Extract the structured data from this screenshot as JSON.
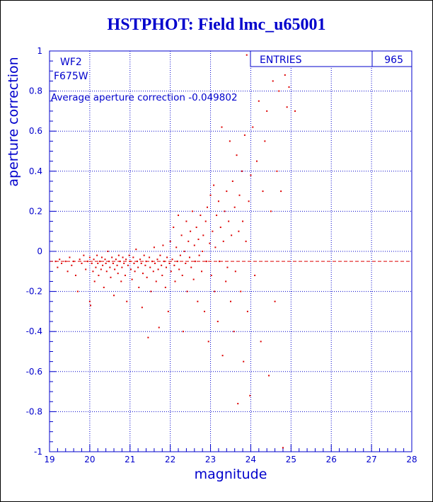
{
  "title": "HSTPHOT: Field lmc_u65001",
  "colors": {
    "axis": "#0000cc",
    "data": "#dd0000",
    "text": "#0000cc"
  },
  "stats_box": {
    "label": "ENTRIES",
    "value": "965"
  },
  "annotations": {
    "chip": "WF2",
    "filter": "F675W",
    "average": "Average aperture correction -0.049802"
  },
  "chart_data": {
    "type": "scatter",
    "title": "HSTPHOT: Field lmc_u65001",
    "xlabel": "magnitude",
    "ylabel": "aperture correction",
    "xlim": [
      19,
      28
    ],
    "ylim": [
      -1,
      1
    ],
    "x_ticks": [
      19,
      20,
      21,
      22,
      23,
      24,
      25,
      26,
      27,
      28
    ],
    "y_ticks": [
      -1,
      -0.8,
      -0.6,
      -0.4,
      -0.2,
      0,
      0.2,
      0.4,
      0.6,
      0.8,
      1
    ],
    "x_tick_labels": [
      "19",
      "20",
      "21",
      "22",
      "23",
      "24",
      "25",
      "26",
      "27",
      "28"
    ],
    "y_tick_labels": [
      "-1",
      "-0.8",
      "-0.6",
      "-0.4",
      "-0.2",
      "0",
      "0.2",
      "0.4",
      "0.6",
      "0.8",
      "1"
    ],
    "grid": true,
    "reference_line": {
      "y": -0.049802,
      "style": "dashed"
    },
    "entries": 965,
    "points": [
      [
        19.15,
        -0.05
      ],
      [
        19.2,
        -0.08
      ],
      [
        19.25,
        -0.04
      ],
      [
        19.3,
        -0.06
      ],
      [
        19.4,
        -0.05
      ],
      [
        19.45,
        -0.1
      ],
      [
        19.5,
        -0.03
      ],
      [
        19.55,
        -0.07
      ],
      [
        19.6,
        -0.05
      ],
      [
        19.65,
        -0.12
      ],
      [
        19.7,
        -0.2
      ],
      [
        19.75,
        -0.04
      ],
      [
        19.8,
        -0.06
      ],
      [
        19.85,
        -0.02
      ],
      [
        19.9,
        -0.09
      ],
      [
        19.95,
        -0.05
      ],
      [
        20.0,
        -0.03
      ],
      [
        20.0,
        -0.25
      ],
      [
        20.02,
        -0.27
      ],
      [
        20.05,
        -0.06
      ],
      [
        20.08,
        -0.1
      ],
      [
        20.1,
        -0.04
      ],
      [
        20.12,
        -0.15
      ],
      [
        20.15,
        -0.08
      ],
      [
        20.18,
        -0.02
      ],
      [
        20.2,
        -0.06
      ],
      [
        20.22,
        -0.12
      ],
      [
        20.25,
        -0.05
      ],
      [
        20.28,
        -0.09
      ],
      [
        20.3,
        -0.03
      ],
      [
        20.32,
        -0.07
      ],
      [
        20.35,
        -0.18
      ],
      [
        20.38,
        -0.04
      ],
      [
        20.4,
        -0.06
      ],
      [
        20.42,
        -0.1
      ],
      [
        20.45,
        0.0
      ],
      [
        20.48,
        -0.05
      ],
      [
        20.5,
        -0.08
      ],
      [
        20.52,
        -0.13
      ],
      [
        20.55,
        -0.03
      ],
      [
        20.58,
        -0.06
      ],
      [
        20.6,
        -0.22
      ],
      [
        20.62,
        -0.09
      ],
      [
        20.65,
        -0.04
      ],
      [
        20.68,
        -0.07
      ],
      [
        20.7,
        -0.11
      ],
      [
        20.72,
        -0.02
      ],
      [
        20.75,
        -0.05
      ],
      [
        20.78,
        -0.15
      ],
      [
        20.8,
        -0.08
      ],
      [
        20.82,
        -0.03
      ],
      [
        20.85,
        -0.06
      ],
      [
        20.88,
        -0.12
      ],
      [
        20.9,
        -0.04
      ],
      [
        20.92,
        -0.25
      ],
      [
        20.95,
        -0.07
      ],
      [
        20.98,
        -0.02
      ],
      [
        21.0,
        -0.05
      ],
      [
        21.02,
        -0.09
      ],
      [
        21.05,
        -0.14
      ],
      [
        21.08,
        -0.03
      ],
      [
        21.1,
        -0.06
      ],
      [
        21.12,
        -0.1
      ],
      [
        21.15,
        0.01
      ],
      [
        21.18,
        -0.05
      ],
      [
        21.2,
        -0.08
      ],
      [
        21.22,
        -0.18
      ],
      [
        21.25,
        -0.04
      ],
      [
        21.28,
        -0.06
      ],
      [
        21.3,
        -0.28
      ],
      [
        21.32,
        -0.11
      ],
      [
        21.35,
        -0.02
      ],
      [
        21.38,
        -0.07
      ],
      [
        21.4,
        -0.05
      ],
      [
        21.42,
        -0.13
      ],
      [
        21.45,
        -0.43
      ],
      [
        21.48,
        -0.03
      ],
      [
        21.5,
        -0.08
      ],
      [
        21.52,
        -0.2
      ],
      [
        21.55,
        -0.05
      ],
      [
        21.58,
        -0.1
      ],
      [
        21.6,
        0.02
      ],
      [
        21.62,
        -0.06
      ],
      [
        21.65,
        -0.15
      ],
      [
        21.68,
        -0.04
      ],
      [
        21.7,
        -0.09
      ],
      [
        21.72,
        -0.38
      ],
      [
        21.75,
        -0.02
      ],
      [
        21.78,
        -0.07
      ],
      [
        21.8,
        -0.12
      ],
      [
        21.82,
        0.03
      ],
      [
        21.85,
        -0.05
      ],
      [
        21.88,
        -0.18
      ],
      [
        21.9,
        -0.08
      ],
      [
        21.92,
        -0.03
      ],
      [
        21.95,
        -0.3
      ],
      [
        21.98,
        -0.06
      ],
      [
        22.0,
        0.05
      ],
      [
        22.02,
        -0.1
      ],
      [
        22.05,
        -0.04
      ],
      [
        22.08,
        0.12
      ],
      [
        22.1,
        -0.07
      ],
      [
        22.12,
        -0.15
      ],
      [
        22.15,
        0.02
      ],
      [
        22.18,
        -0.05
      ],
      [
        22.2,
        0.18
      ],
      [
        22.22,
        -0.09
      ],
      [
        22.25,
        -0.02
      ],
      [
        22.28,
        0.08
      ],
      [
        22.3,
        -0.12
      ],
      [
        22.32,
        -0.4
      ],
      [
        22.35,
        0.0
      ],
      [
        22.38,
        -0.06
      ],
      [
        22.4,
        0.15
      ],
      [
        22.42,
        -0.2
      ],
      [
        22.45,
        0.05
      ],
      [
        22.48,
        -0.03
      ],
      [
        22.5,
        0.1
      ],
      [
        22.52,
        -0.08
      ],
      [
        22.55,
        0.2
      ],
      [
        22.58,
        -0.14
      ],
      [
        22.6,
        0.03
      ],
      [
        22.62,
        -0.05
      ],
      [
        22.65,
        0.12
      ],
      [
        22.68,
        -0.25
      ],
      [
        22.7,
        0.06
      ],
      [
        22.72,
        -0.02
      ],
      [
        22.75,
        0.18
      ],
      [
        22.78,
        -0.1
      ],
      [
        22.8,
        0.0
      ],
      [
        22.82,
        0.08
      ],
      [
        22.85,
        -0.3
      ],
      [
        22.88,
        0.15
      ],
      [
        22.9,
        -0.05
      ],
      [
        22.92,
        0.22
      ],
      [
        22.95,
        -0.45
      ],
      [
        22.98,
        0.04
      ],
      [
        23.0,
        0.28
      ],
      [
        23.02,
        -0.12
      ],
      [
        23.05,
        0.1
      ],
      [
        23.08,
        0.33
      ],
      [
        23.1,
        -0.2
      ],
      [
        23.12,
        0.02
      ],
      [
        23.15,
        0.18
      ],
      [
        23.18,
        -0.35
      ],
      [
        23.2,
        0.25
      ],
      [
        23.22,
        -0.05
      ],
      [
        23.25,
        0.12
      ],
      [
        23.28,
        0.62
      ],
      [
        23.3,
        -0.52
      ],
      [
        23.32,
        0.05
      ],
      [
        23.35,
        0.2
      ],
      [
        23.38,
        -0.15
      ],
      [
        23.4,
        0.3
      ],
      [
        23.42,
        -0.08
      ],
      [
        23.45,
        0.15
      ],
      [
        23.48,
        0.55
      ],
      [
        23.5,
        -0.25
      ],
      [
        23.52,
        0.08
      ],
      [
        23.55,
        0.35
      ],
      [
        23.58,
        -0.4
      ],
      [
        23.6,
        0.22
      ],
      [
        23.62,
        -0.1
      ],
      [
        23.65,
        0.48
      ],
      [
        23.68,
        -0.76
      ],
      [
        23.7,
        0.1
      ],
      [
        23.72,
        0.28
      ],
      [
        23.75,
        -0.2
      ],
      [
        23.78,
        0.4
      ],
      [
        23.8,
        0.15
      ],
      [
        23.82,
        -0.55
      ],
      [
        23.85,
        0.58
      ],
      [
        23.88,
        0.05
      ],
      [
        23.9,
        0.98
      ],
      [
        23.92,
        -0.3
      ],
      [
        23.95,
        0.25
      ],
      [
        23.98,
        -0.72
      ],
      [
        24.0,
        0.38
      ],
      [
        24.05,
        0.62
      ],
      [
        24.1,
        -0.12
      ],
      [
        24.15,
        0.45
      ],
      [
        24.2,
        0.75
      ],
      [
        24.25,
        -0.45
      ],
      [
        24.3,
        0.3
      ],
      [
        24.35,
        0.55
      ],
      [
        24.4,
        0.7
      ],
      [
        24.45,
        -0.62
      ],
      [
        24.5,
        0.2
      ],
      [
        24.55,
        0.85
      ],
      [
        24.6,
        -0.25
      ],
      [
        24.65,
        0.4
      ],
      [
        24.7,
        0.8
      ],
      [
        24.75,
        0.3
      ],
      [
        24.8,
        -0.98
      ],
      [
        24.85,
        0.88
      ],
      [
        24.9,
        0.72
      ],
      [
        24.95,
        0.82
      ],
      [
        25.1,
        0.7
      ]
    ]
  }
}
